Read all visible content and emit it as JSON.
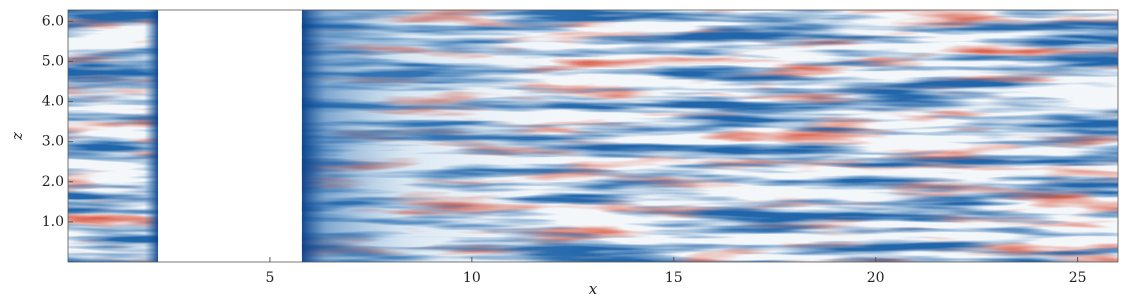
{
  "chart_data": {
    "type": "field",
    "x_label": "x",
    "y_label": "z",
    "xlim": [
      0,
      26
    ],
    "ylim": [
      0,
      6.283
    ],
    "xticks": [
      5,
      10,
      15,
      20,
      25
    ],
    "yticks": [
      {
        "value": 1,
        "label": "1.0"
      },
      {
        "value": 2,
        "label": "2.0"
      },
      {
        "value": 3,
        "label": "3.0"
      },
      {
        "value": 4,
        "label": "4.0"
      },
      {
        "value": 5,
        "label": "5.0"
      },
      {
        "value": 6,
        "label": "6.0"
      }
    ],
    "masked_range": [
      2.23,
      5.79
    ]
  }
}
